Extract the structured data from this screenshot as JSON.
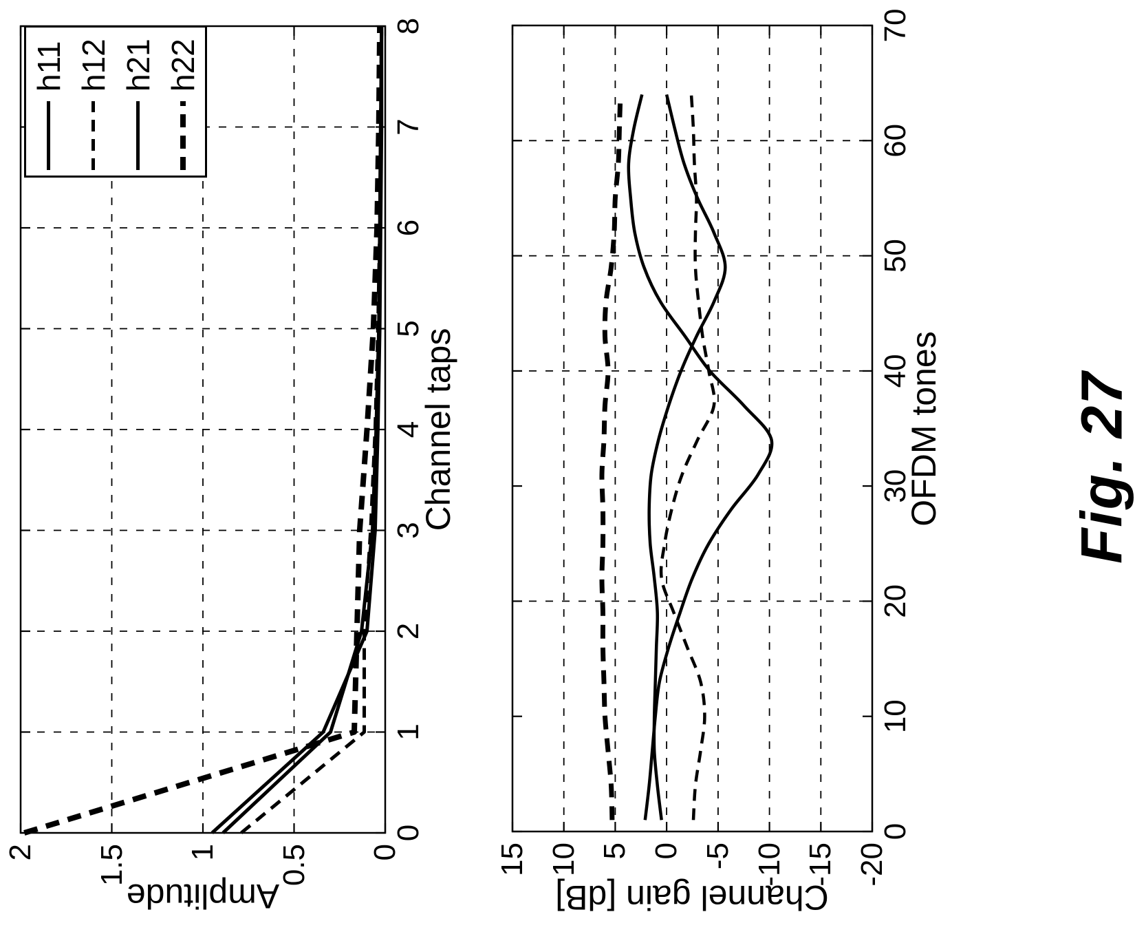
{
  "figure_label": "Fig. 27",
  "colors": {
    "ink": "#000000",
    "paper": "#ffffff"
  },
  "legend": {
    "position": "top-right",
    "entries": [
      {
        "label": "h11",
        "dash": "solid"
      },
      {
        "label": "h12",
        "dash": "dashed"
      },
      {
        "label": "h21",
        "dash": "solid"
      },
      {
        "label": "h22",
        "dash": "dashed-thick"
      }
    ]
  },
  "chart_data": [
    {
      "type": "line",
      "title": "",
      "xlabel": "Channel taps",
      "ylabel": "Amplitude",
      "xlim": [
        0,
        8
      ],
      "ylim": [
        0,
        2
      ],
      "xticks": [
        0,
        1,
        2,
        3,
        4,
        5,
        6,
        7,
        8
      ],
      "xtick_labels": [
        "0",
        "1",
        "2",
        "3",
        "4",
        "5",
        "6",
        "7",
        "8"
      ],
      "yticks": [
        0,
        0.5,
        1,
        1.5,
        2
      ],
      "ytick_labels": [
        "0",
        "0.5",
        "1",
        "1.5",
        "2"
      ],
      "xgrid": [
        1,
        2,
        3,
        4,
        5,
        6,
        7
      ],
      "ygrid": [
        0.5,
        1,
        1.5
      ],
      "grid_style": "dashed",
      "smooth": false,
      "series": [
        {
          "name": "h11",
          "style": "solid",
          "width": 5,
          "x": [
            0,
            1,
            2,
            3,
            4,
            5,
            6,
            7,
            8
          ],
          "y": [
            0.95,
            0.34,
            0.1,
            0.055,
            0.04,
            0.03,
            0.025,
            0.02,
            0.02
          ]
        },
        {
          "name": "h12",
          "style": "dashed",
          "width": 5,
          "x": [
            0,
            1,
            2,
            3,
            4,
            5,
            6,
            7,
            8
          ],
          "y": [
            0.79,
            0.115,
            0.115,
            0.08,
            0.055,
            0.04,
            0.03,
            0.025,
            0.02
          ]
        },
        {
          "name": "h21",
          "style": "solid",
          "width": 5,
          "x": [
            0,
            1,
            2,
            3,
            4,
            5,
            6,
            7,
            8
          ],
          "y": [
            0.89,
            0.3,
            0.13,
            0.07,
            0.05,
            0.035,
            0.03,
            0.025,
            0.02
          ]
        },
        {
          "name": "h22",
          "style": "dashed",
          "width": 8,
          "x": [
            0,
            1,
            2,
            3,
            4,
            5,
            6,
            7,
            8
          ],
          "y": [
            1.98,
            0.17,
            0.155,
            0.14,
            0.1,
            0.065,
            0.045,
            0.035,
            0.03
          ]
        }
      ]
    },
    {
      "type": "line",
      "title": "",
      "xlabel": "OFDM tones",
      "ylabel": "Channel gain [dB]",
      "xlim": [
        0,
        70
      ],
      "ylim": [
        -20,
        15
      ],
      "xticks": [
        0,
        10,
        20,
        30,
        40,
        50,
        60,
        70
      ],
      "xtick_labels": [
        "0",
        "10",
        "20",
        "30",
        "40",
        "50",
        "60",
        "70"
      ],
      "yticks": [
        15,
        10,
        5,
        0,
        -5,
        -10,
        -15,
        -20
      ],
      "ytick_labels": [
        "15",
        "10",
        "5",
        "0",
        "-5",
        "-10",
        "-15",
        "-20"
      ],
      "xgrid": [
        20,
        40,
        50,
        60
      ],
      "ygrid": [
        10,
        5,
        0,
        -5,
        -10,
        -15
      ],
      "grid_style": "dashed",
      "smooth": true,
      "series": [
        {
          "name": "h11",
          "style": "solid",
          "width": 4.5,
          "x": [
            1,
            4,
            7,
            10,
            13,
            16,
            19,
            22,
            25,
            28,
            31,
            34,
            37,
            40,
            43,
            46,
            49,
            52,
            55,
            58,
            61,
            64
          ],
          "y": [
            2.1,
            1.7,
            1.4,
            1.1,
            0.7,
            -0.2,
            -1.3,
            -2.5,
            -4.1,
            -6.3,
            -8.9,
            -10.2,
            -7.5,
            -4.2,
            -1.8,
            0.6,
            2.2,
            3.1,
            3.5,
            3.7,
            3.2,
            2.4
          ]
        },
        {
          "name": "h12",
          "style": "dashed",
          "width": 4.5,
          "x": [
            1,
            4,
            7,
            10,
            13,
            16,
            19,
            22,
            25,
            28,
            31,
            34,
            37,
            40,
            43,
            46,
            49,
            52,
            55,
            58,
            61,
            64
          ],
          "y": [
            -2.6,
            -2.8,
            -3.3,
            -3.7,
            -3.3,
            -2.0,
            -0.7,
            0.5,
            0.2,
            -0.5,
            -1.5,
            -3.0,
            -4.6,
            -4.1,
            -3.5,
            -3.1,
            -2.8,
            -2.8,
            -2.9,
            -2.7,
            -2.6,
            -2.4
          ]
        },
        {
          "name": "h21",
          "style": "solid",
          "width": 4.5,
          "x": [
            1,
            4,
            7,
            10,
            13,
            16,
            19,
            22,
            25,
            28,
            31,
            34,
            37,
            40,
            43,
            46,
            49,
            52,
            55,
            58,
            61,
            64
          ],
          "y": [
            0.5,
            0.9,
            1.2,
            1.2,
            1.1,
            1.0,
            0.9,
            1.2,
            1.6,
            1.7,
            1.5,
            0.8,
            -0.2,
            -1.4,
            -2.9,
            -4.6,
            -5.7,
            -4.6,
            -3.0,
            -1.7,
            -0.8,
            0.0
          ]
        },
        {
          "name": "h22",
          "style": "dashed",
          "width": 7,
          "x": [
            1,
            4,
            7,
            10,
            13,
            16,
            19,
            22,
            25,
            28,
            31,
            34,
            37,
            40,
            43,
            46,
            49,
            52,
            55,
            58,
            61,
            64
          ],
          "y": [
            5.3,
            5.4,
            5.7,
            6.0,
            6.1,
            6.2,
            6.2,
            6.3,
            6.2,
            6.2,
            6.3,
            6.1,
            6.0,
            5.7,
            6.0,
            5.9,
            5.4,
            5.1,
            5.0,
            4.7,
            4.6,
            4.5
          ]
        }
      ]
    }
  ]
}
